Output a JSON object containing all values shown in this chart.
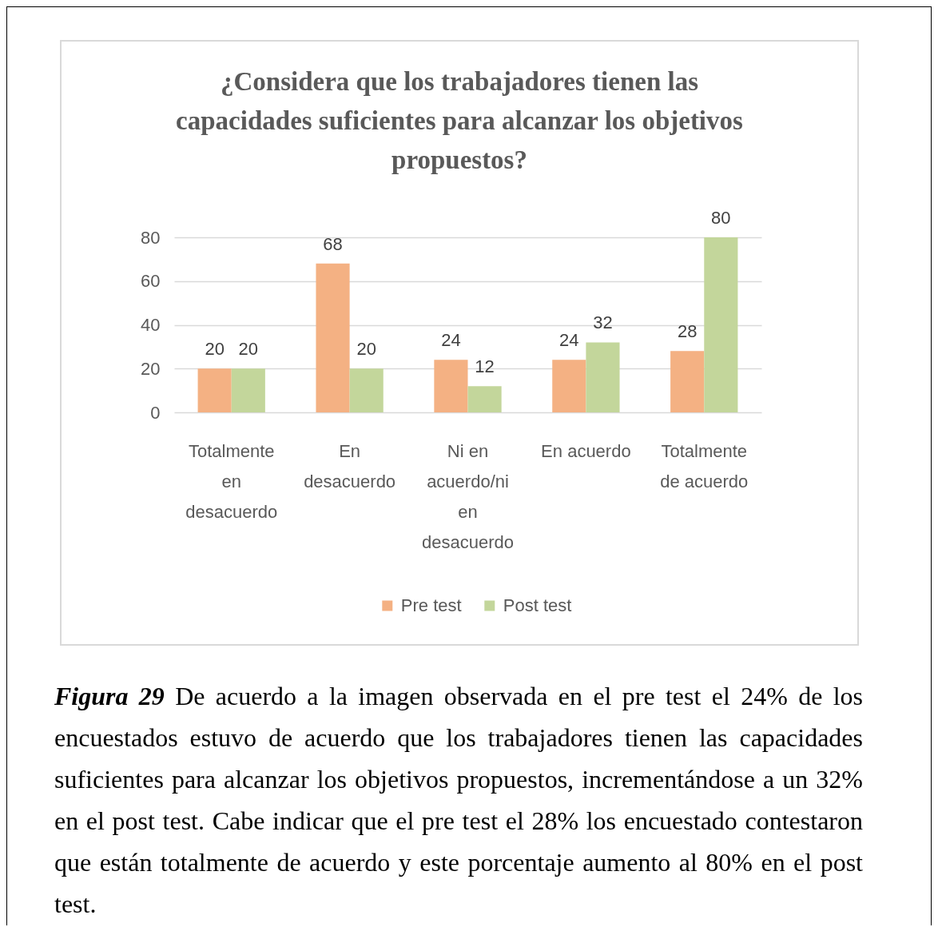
{
  "chart_data": {
    "type": "bar",
    "title": "¿Considera que los trabajadores tienen las capacidades suficientes para alcanzar los objetivos propuestos?",
    "categories": [
      "Totalmente en desacuerdo",
      "En desacuerdo",
      "Ni en acuerdo/ni en desacuerdo",
      "En acuerdo",
      "Totalmente de acuerdo"
    ],
    "series": [
      {
        "name": "Pre test",
        "color": "#f4b183",
        "values": [
          20,
          68,
          24,
          24,
          28
        ]
      },
      {
        "name": "Post test",
        "color": "#c3d69b",
        "values": [
          20,
          20,
          12,
          32,
          80
        ]
      }
    ],
    "ylim": [
      0,
      80
    ],
    "yticks": [
      0,
      20,
      40,
      60,
      80
    ],
    "grid": "y",
    "legend": "bottom",
    "data_labels": true,
    "annotations": [
      "Figura 29",
      "De acuerdo a la imagen observada en el pre test el 24% de los encuestados estuvo de acuerdo que los trabajadores tienen las capacidades suficientes para alcanzar los objetivos propuestos, incrementándose a un 32% en el post test. Cabe indicar que el pre test el 28% los encuestado contestaron que están totalmente de acuerdo y este porcentaje aumento al 80% en el post test."
    ]
  }
}
